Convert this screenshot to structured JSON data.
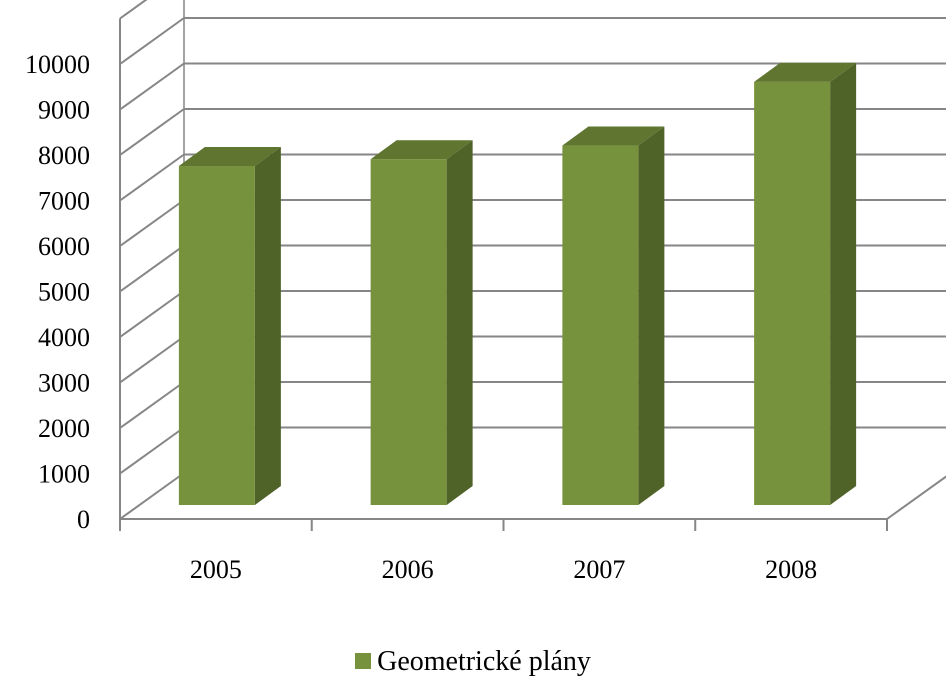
{
  "chart_data": {
    "type": "bar",
    "three_d": true,
    "categories": [
      "2005",
      "2006",
      "2007",
      "2008"
    ],
    "series": [
      {
        "name": "Geometrické plány",
        "values": [
          7450,
          7600,
          7900,
          9300
        ]
      }
    ],
    "ylim": [
      0,
      10000
    ],
    "yticks": [
      "0",
      "1000",
      "2000",
      "3000",
      "4000",
      "5000",
      "6000",
      "7000",
      "8000",
      "9000",
      "10000"
    ],
    "grid": true,
    "legend_position": "bottom",
    "colors": {
      "bar_front": "#76923c",
      "bar_side": "#4f6228",
      "bar_top": "#5f7530",
      "grid": "#868686"
    }
  }
}
